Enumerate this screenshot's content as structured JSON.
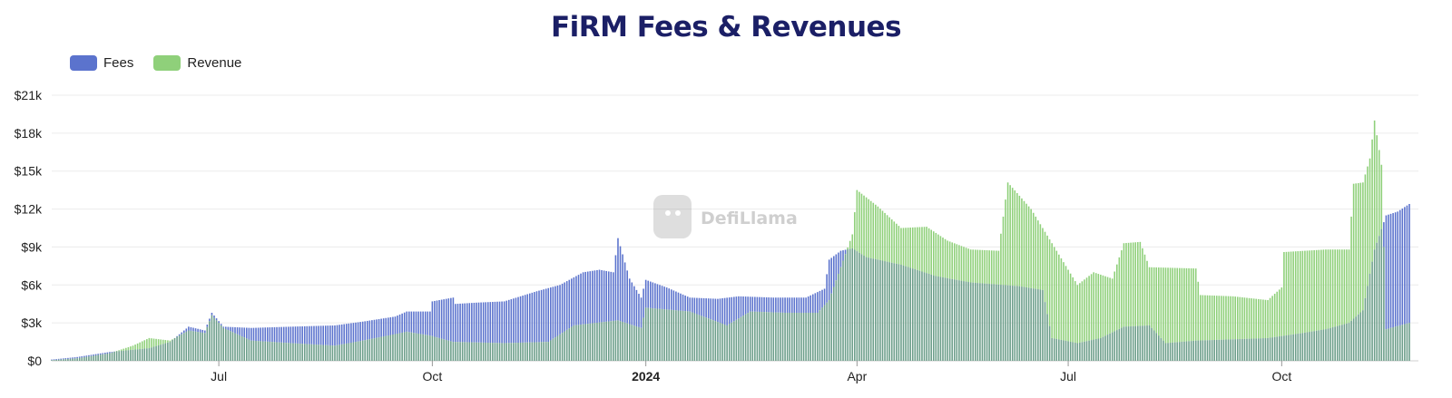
{
  "title": "FiRM Fees & Revenues",
  "watermark": "DefiLlama",
  "colors": {
    "fees": "#5b73cd",
    "revenue": "#8fd07a",
    "overlap": "#6c9e8a",
    "title": "#1b1f66"
  },
  "chart_data": {
    "type": "bar",
    "title": "FiRM Fees & Revenues",
    "xlabel": "",
    "ylabel": "",
    "x_start": "2023-04-20",
    "x_end": "2024-11-25",
    "ylim": [
      0,
      21000
    ],
    "y_ticks": [
      {
        "value": 0,
        "label": "$0"
      },
      {
        "value": 3000,
        "label": "$3k"
      },
      {
        "value": 6000,
        "label": "$6k"
      },
      {
        "value": 9000,
        "label": "$9k"
      },
      {
        "value": 12000,
        "label": "$12k"
      },
      {
        "value": 15000,
        "label": "$15k"
      },
      {
        "value": 18000,
        "label": "$18k"
      },
      {
        "value": 21000,
        "label": "$21k"
      }
    ],
    "x_ticks": [
      {
        "date": "2023-07-01",
        "label": "Jul",
        "bold": false
      },
      {
        "date": "2023-10-01",
        "label": "Oct",
        "bold": false
      },
      {
        "date": "2024-01-01",
        "label": "2024",
        "bold": true
      },
      {
        "date": "2024-04-01",
        "label": "Apr",
        "bold": false
      },
      {
        "date": "2024-07-01",
        "label": "Jul",
        "bold": false
      },
      {
        "date": "2024-10-01",
        "label": "Oct",
        "bold": false
      }
    ],
    "grid": true,
    "legend_position": "top-left",
    "series": [
      {
        "name": "Fees",
        "color": "#5b73cd",
        "points": [
          [
            "2023-04-20",
            100
          ],
          [
            "2023-05-01",
            300
          ],
          [
            "2023-05-15",
            700
          ],
          [
            "2023-06-01",
            1000
          ],
          [
            "2023-06-10",
            1500
          ],
          [
            "2023-06-18",
            2700
          ],
          [
            "2023-06-25",
            2400
          ],
          [
            "2023-06-28",
            3800
          ],
          [
            "2023-07-03",
            2700
          ],
          [
            "2023-07-15",
            2600
          ],
          [
            "2023-08-01",
            2700
          ],
          [
            "2023-08-20",
            2800
          ],
          [
            "2023-09-01",
            3100
          ],
          [
            "2023-09-15",
            3500
          ],
          [
            "2023-09-20",
            3900
          ],
          [
            "2023-09-30",
            3900
          ],
          [
            "2023-10-01",
            4700
          ],
          [
            "2023-10-10",
            5000
          ],
          [
            "2023-10-11",
            4500
          ],
          [
            "2023-10-20",
            4600
          ],
          [
            "2023-11-01",
            4700
          ],
          [
            "2023-11-15",
            5500
          ],
          [
            "2023-11-25",
            6000
          ],
          [
            "2023-12-05",
            7000
          ],
          [
            "2023-12-12",
            7200
          ],
          [
            "2023-12-18",
            7000
          ],
          [
            "2023-12-20",
            9700
          ],
          [
            "2023-12-25",
            6500
          ],
          [
            "2023-12-30",
            5000
          ],
          [
            "2024-01-01",
            6400
          ],
          [
            "2024-01-10",
            5800
          ],
          [
            "2024-01-20",
            5000
          ],
          [
            "2024-02-01",
            4900
          ],
          [
            "2024-02-10",
            5100
          ],
          [
            "2024-02-25",
            5000
          ],
          [
            "2024-03-10",
            5000
          ],
          [
            "2024-03-18",
            5700
          ],
          [
            "2024-03-20",
            8000
          ],
          [
            "2024-03-25",
            8700
          ],
          [
            "2024-03-30",
            8900
          ],
          [
            "2024-04-05",
            8200
          ],
          [
            "2024-04-20",
            7600
          ],
          [
            "2024-05-05",
            6700
          ],
          [
            "2024-05-20",
            6200
          ],
          [
            "2024-06-10",
            5900
          ],
          [
            "2024-06-20",
            5600
          ],
          [
            "2024-06-24",
            1800
          ],
          [
            "2024-07-05",
            1400
          ],
          [
            "2024-07-15",
            1800
          ],
          [
            "2024-07-25",
            2700
          ],
          [
            "2024-08-05",
            2800
          ],
          [
            "2024-08-12",
            1400
          ],
          [
            "2024-08-25",
            1600
          ],
          [
            "2024-09-10",
            1700
          ],
          [
            "2024-09-25",
            1800
          ],
          [
            "2024-10-10",
            2200
          ],
          [
            "2024-10-20",
            2500
          ],
          [
            "2024-10-30",
            3000
          ],
          [
            "2024-11-05",
            4000
          ],
          [
            "2024-11-10",
            8800
          ],
          [
            "2024-11-15",
            11500
          ],
          [
            "2024-11-20",
            11800
          ],
          [
            "2024-11-25",
            12400
          ]
        ]
      },
      {
        "name": "Revenue",
        "color": "#8fd07a",
        "points": [
          [
            "2023-04-20",
            50
          ],
          [
            "2023-05-01",
            200
          ],
          [
            "2023-05-15",
            600
          ],
          [
            "2023-05-25",
            1200
          ],
          [
            "2023-06-01",
            1800
          ],
          [
            "2023-06-10",
            1600
          ],
          [
            "2023-06-18",
            2400
          ],
          [
            "2023-06-25",
            2200
          ],
          [
            "2023-06-28",
            3600
          ],
          [
            "2023-07-03",
            2600
          ],
          [
            "2023-07-15",
            1600
          ],
          [
            "2023-08-01",
            1400
          ],
          [
            "2023-08-20",
            1200
          ],
          [
            "2023-09-01",
            1600
          ],
          [
            "2023-09-20",
            2300
          ],
          [
            "2023-09-30",
            2000
          ],
          [
            "2023-10-10",
            1500
          ],
          [
            "2023-11-01",
            1400
          ],
          [
            "2023-11-20",
            1500
          ],
          [
            "2023-12-01",
            2800
          ],
          [
            "2023-12-20",
            3200
          ],
          [
            "2023-12-30",
            2600
          ],
          [
            "2024-01-01",
            4200
          ],
          [
            "2024-01-20",
            3900
          ],
          [
            "2024-02-05",
            2800
          ],
          [
            "2024-02-15",
            3900
          ],
          [
            "2024-03-01",
            3800
          ],
          [
            "2024-03-15",
            3800
          ],
          [
            "2024-03-20",
            4800
          ],
          [
            "2024-03-30",
            10000
          ],
          [
            "2024-04-01",
            13500
          ],
          [
            "2024-04-10",
            12200
          ],
          [
            "2024-04-20",
            10500
          ],
          [
            "2024-05-01",
            10600
          ],
          [
            "2024-05-10",
            9500
          ],
          [
            "2024-05-20",
            8800
          ],
          [
            "2024-06-01",
            8700
          ],
          [
            "2024-06-05",
            14100
          ],
          [
            "2024-06-15",
            12000
          ],
          [
            "2024-06-24",
            9300
          ],
          [
            "2024-07-05",
            6000
          ],
          [
            "2024-07-12",
            7000
          ],
          [
            "2024-07-20",
            6500
          ],
          [
            "2024-07-25",
            9300
          ],
          [
            "2024-08-01",
            9400
          ],
          [
            "2024-08-05",
            7400
          ],
          [
            "2024-08-25",
            7300
          ],
          [
            "2024-08-27",
            5200
          ],
          [
            "2024-09-10",
            5100
          ],
          [
            "2024-09-25",
            4800
          ],
          [
            "2024-10-01",
            5800
          ],
          [
            "2024-10-02",
            8600
          ],
          [
            "2024-10-20",
            8800
          ],
          [
            "2024-10-30",
            8800
          ],
          [
            "2024-11-01",
            14000
          ],
          [
            "2024-11-05",
            14100
          ],
          [
            "2024-11-08",
            16000
          ],
          [
            "2024-11-10",
            19000
          ],
          [
            "2024-11-13",
            15500
          ],
          [
            "2024-11-15",
            2500
          ],
          [
            "2024-11-25",
            3000
          ]
        ]
      }
    ]
  }
}
